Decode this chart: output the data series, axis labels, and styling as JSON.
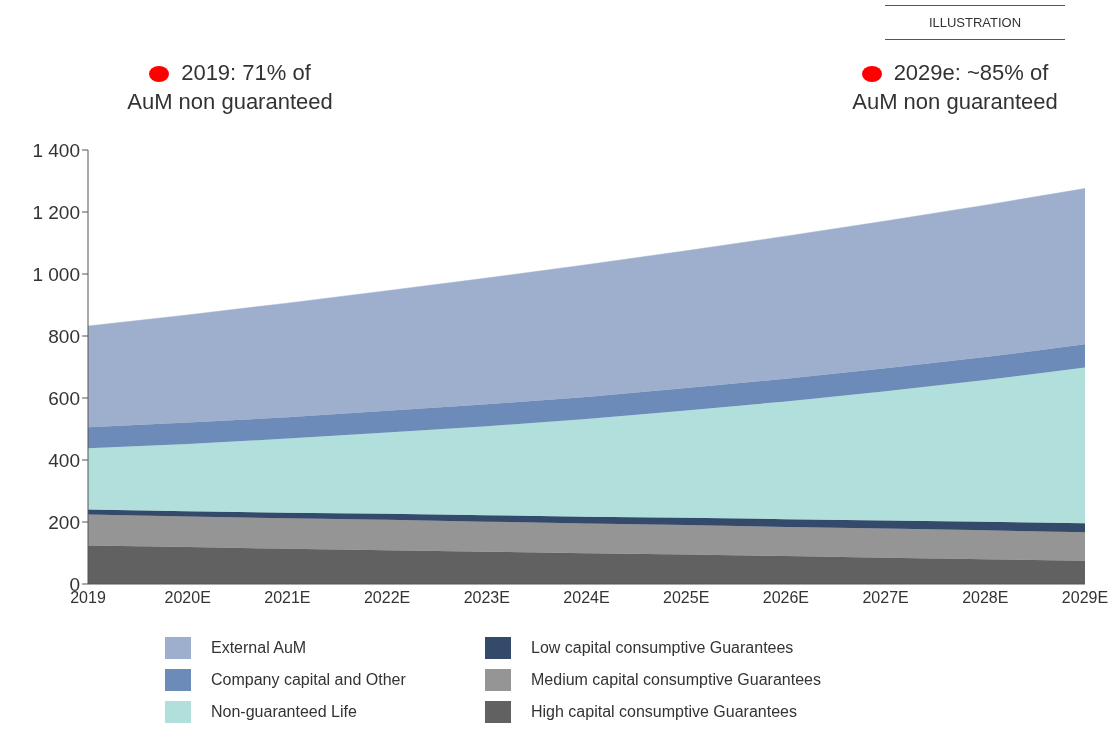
{
  "chart_data": {
    "type": "area",
    "stacked": true,
    "categories": [
      "2019",
      "2020E",
      "2021E",
      "2022E",
      "2023E",
      "2024E",
      "2025E",
      "2026E",
      "2027E",
      "2028E",
      "2029E"
    ],
    "series": [
      {
        "name": "High capital consumptive Guarantees",
        "color": "#616161",
        "values": [
          124,
          119,
          114,
          109,
          104,
          99,
          95,
          90,
          85,
          80,
          75
        ]
      },
      {
        "name": "Medium capital consumptive Guarantees",
        "color": "#959595",
        "values": [
          100,
          99,
          98,
          98,
          97,
          96,
          95,
          94,
          94,
          93,
          92
        ]
      },
      {
        "name": "Low capital consumptive Guarantees",
        "color": "#344a6b",
        "values": [
          16,
          17,
          18,
          20,
          21,
          22,
          24,
          25,
          26,
          28,
          29
        ]
      },
      {
        "name": "Non-guaranteed Life",
        "color": "#b1dfdb",
        "values": [
          198,
          217,
          239,
          262,
          287,
          315,
          346,
          380,
          417,
          457,
          502
        ]
      },
      {
        "name": "Company capital and Other",
        "color": "#6d8bb8",
        "values": [
          68,
          69,
          69,
          70,
          71,
          71,
          72,
          73,
          74,
          74,
          75
        ]
      },
      {
        "name": "External AuM",
        "color": "#9dafcd",
        "values": [
          326,
          347,
          368,
          387,
          407,
          427,
          443,
          460,
          475,
          490,
          503
        ]
      }
    ],
    "ylim": [
      0,
      1400
    ],
    "yticks": [
      0,
      200,
      400,
      600,
      800,
      {
        "value": 1000,
        "label": "1 000"
      },
      {
        "value": 1200,
        "label": "1 200"
      },
      {
        "value": 1400,
        "label": "1 400"
      }
    ],
    "grid": false,
    "legend": "bottom",
    "annotations": [
      "2019: 71% of AuM non guaranteed",
      "2029e: ~85% of AuM non guaranteed",
      "ILLUSTRATION"
    ]
  }
}
